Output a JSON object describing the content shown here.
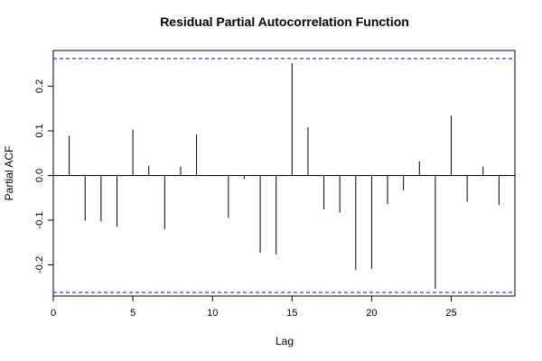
{
  "chart_data": {
    "type": "bar",
    "title": "Residual Partial Autocorrelation Function",
    "xlabel": "Lag",
    "ylabel": "Partial ACF",
    "xlim": [
      0,
      29
    ],
    "ylim": [
      -0.27,
      0.28
    ],
    "x_ticks": [
      0,
      5,
      10,
      15,
      20,
      25
    ],
    "y_ticks": [
      -0.2,
      -0.1,
      0.0,
      0.1,
      0.2
    ],
    "y_tick_labels": [
      "-0.2",
      "-0.1",
      "0.0",
      "0.1",
      "0.2"
    ],
    "confidence_bounds": [
      0.262,
      -0.262
    ],
    "confidence_color": "#0000ff",
    "lags": [
      1,
      2,
      3,
      4,
      5,
      6,
      7,
      8,
      9,
      10,
      11,
      12,
      13,
      14,
      15,
      16,
      17,
      18,
      19,
      20,
      21,
      22,
      23,
      24,
      25,
      26,
      27,
      28
    ],
    "values": [
      0.089,
      -0.101,
      -0.103,
      -0.115,
      0.103,
      0.022,
      -0.12,
      0.02,
      0.092,
      0.001,
      -0.095,
      -0.008,
      -0.173,
      -0.177,
      0.252,
      0.108,
      -0.076,
      -0.083,
      -0.212,
      -0.209,
      -0.064,
      -0.033,
      0.032,
      -0.254,
      0.134,
      -0.059,
      0.02,
      -0.066
    ]
  }
}
